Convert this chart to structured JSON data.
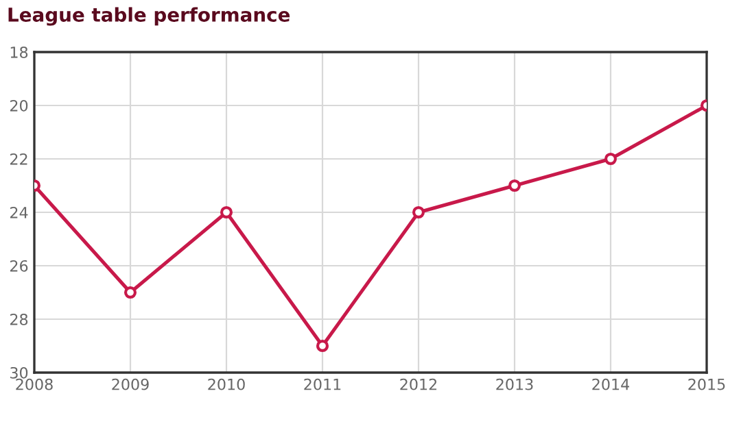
{
  "chart_data": {
    "type": "line",
    "title": "League table performance",
    "x": [
      2008,
      2009,
      2010,
      2011,
      2012,
      2013,
      2014,
      2015
    ],
    "series": [
      {
        "color": "#c8194a",
        "values": [
          23,
          27,
          24,
          29,
          24,
          23,
          22,
          20
        ]
      }
    ],
    "xlim": [
      2008,
      2015
    ],
    "xticks": [
      2008,
      2009,
      2010,
      2011,
      2012,
      2013,
      2014,
      2015
    ],
    "ylim": [
      30,
      18
    ],
    "yticks": [
      18,
      20,
      22,
      24,
      26,
      28,
      30
    ],
    "grid": true,
    "marker": "circle",
    "line_style": "solid",
    "legend": false
  }
}
